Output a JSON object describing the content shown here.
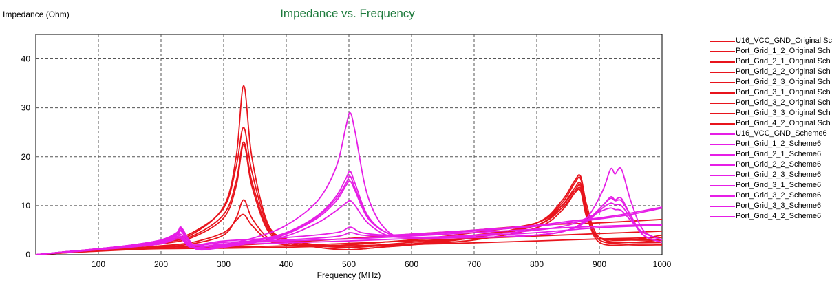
{
  "chart_data": {
    "type": "line",
    "title": "Impedance vs. Frequency",
    "ylabel": "Impedance (Ohm)",
    "xlabel": "Frequency (MHz)",
    "xlim": [
      0,
      1000
    ],
    "ylim": [
      0,
      45
    ],
    "xticks": [
      100,
      200,
      300,
      400,
      500,
      600,
      700,
      800,
      900,
      1000
    ],
    "yticks": [
      0,
      10,
      20,
      30,
      40
    ],
    "grid": true,
    "legend_position": "right",
    "colors": {
      "original": "#e8141c",
      "scheme6": "#e61ee6"
    },
    "series": [
      {
        "name": "U16_VCC_GND_Original Sc",
        "group": "original",
        "x": [
          0,
          50,
          100,
          150,
          200,
          250,
          300,
          320,
          332,
          345,
          370,
          400,
          450,
          500,
          550,
          600,
          700,
          800,
          840,
          860,
          870,
          880,
          900,
          950,
          1000
        ],
        "y": [
          0,
          0.5,
          1.0,
          1.5,
          2.2,
          3.5,
          7.5,
          14,
          22.5,
          14,
          5,
          2.5,
          1.5,
          1,
          1.5,
          2,
          3,
          5.5,
          9,
          12.5,
          13.5,
          8,
          2.5,
          2,
          2
        ]
      },
      {
        "name": "Port_Grid_1_2_Original Sch",
        "group": "original",
        "x": [
          0,
          50,
          100,
          150,
          200,
          250,
          300,
          320,
          332,
          345,
          370,
          400,
          450,
          500,
          550,
          600,
          700,
          800,
          840,
          860,
          870,
          880,
          900,
          950,
          1000
        ],
        "y": [
          0,
          0.6,
          1.2,
          1.8,
          2.7,
          4.5,
          9.5,
          18,
          26,
          17,
          6,
          3,
          1.5,
          1,
          1.5,
          2,
          3.5,
          6.5,
          10.5,
          14.5,
          15.5,
          9,
          3,
          2.5,
          3
        ]
      },
      {
        "name": "Port_Grid_2_1_Original Sch",
        "group": "original",
        "x": [
          0,
          50,
          100,
          150,
          200,
          250,
          300,
          320,
          332,
          345,
          370,
          400,
          450,
          500,
          550,
          600,
          700,
          800,
          840,
          860,
          870,
          880,
          900,
          950,
          1000
        ],
        "y": [
          0,
          0.6,
          1.1,
          1.7,
          2.5,
          3.8,
          8.2,
          15,
          23,
          15,
          5.5,
          2.8,
          1.8,
          1.5,
          2,
          2.5,
          3.5,
          6,
          10,
          13.5,
          14.5,
          8.5,
          3,
          2.5,
          2.5
        ]
      },
      {
        "name": "Port_Grid_2_2_Original Sch",
        "group": "original",
        "x": [
          0,
          50,
          100,
          150,
          200,
          250,
          300,
          320,
          332,
          345,
          370,
          400,
          450,
          500,
          550,
          600,
          700,
          800,
          840,
          860,
          870,
          880,
          900,
          950,
          1000
        ],
        "y": [
          0,
          0.6,
          1.1,
          1.7,
          2.6,
          4.2,
          9.8,
          20,
          34.5,
          20,
          6.5,
          3.2,
          2,
          1.5,
          1.8,
          2.2,
          3.5,
          6.5,
          11,
          15,
          16,
          10,
          3.5,
          2.5,
          2.5
        ]
      },
      {
        "name": "Port_Grid_2_3_Original Sch",
        "group": "original",
        "x": [
          0,
          50,
          100,
          150,
          200,
          250,
          300,
          320,
          332,
          345,
          370,
          400,
          450,
          500,
          550,
          600,
          700,
          800,
          840,
          860,
          870,
          880,
          900,
          950,
          1000
        ],
        "y": [
          0,
          0.5,
          0.9,
          1.2,
          1.6,
          2.2,
          4,
          7.5,
          11.2,
          7.5,
          3.5,
          2,
          1.8,
          2,
          2.5,
          3,
          4.5,
          6.5,
          10,
          13,
          14,
          8,
          3.5,
          3,
          3
        ]
      },
      {
        "name": "Port_Grid_3_1_Original Sch",
        "group": "original",
        "x": [
          0,
          50,
          100,
          150,
          200,
          250,
          300,
          320,
          332,
          345,
          370,
          400,
          450,
          500,
          550,
          600,
          700,
          800,
          840,
          860,
          870,
          880,
          900,
          950,
          1000
        ],
        "y": [
          0,
          0.5,
          0.9,
          1.3,
          1.8,
          2.5,
          4.5,
          7,
          8.2,
          6,
          3,
          2,
          1.8,
          2,
          2.5,
          3,
          4,
          6,
          9.5,
          12.5,
          13,
          7.5,
          3.5,
          3,
          4
        ]
      },
      {
        "name": "Port_Grid_3_2_Original Sch",
        "group": "original",
        "x": [
          0,
          50,
          100,
          150,
          200,
          300,
          400,
          500,
          600,
          700,
          800,
          900,
          1000
        ],
        "y": [
          0,
          0.4,
          0.8,
          1.1,
          1.3,
          1.5,
          1.8,
          2.3,
          2.8,
          3.3,
          3.8,
          4.3,
          4.8
        ]
      },
      {
        "name": "Port_Grid_3_3_Original Sch",
        "group": "original",
        "x": [
          0,
          50,
          100,
          150,
          200,
          300,
          400,
          500,
          600,
          700,
          800,
          900,
          1000
        ],
        "y": [
          0,
          0.4,
          0.7,
          1,
          1.2,
          1.3,
          1.5,
          1.8,
          2.1,
          2.4,
          2.8,
          3.2,
          3.5
        ]
      },
      {
        "name": "Port_Grid_4_2_Original Sch",
        "group": "original",
        "x": [
          0,
          50,
          100,
          150,
          200,
          300,
          400,
          500,
          600,
          700,
          800,
          900,
          1000
        ],
        "y": [
          0,
          0.5,
          0.9,
          1.2,
          1.5,
          1.8,
          2.5,
          3.3,
          4.2,
          5,
          6,
          6.5,
          7.2
        ]
      },
      {
        "name": "U16_VCC_GND_Scheme6",
        "group": "scheme6",
        "x": [
          0,
          50,
          100,
          150,
          200,
          225,
          232,
          245,
          260,
          300,
          350,
          400,
          450,
          480,
          495,
          502,
          510,
          530,
          560,
          600,
          700,
          800,
          850,
          880,
          905,
          918,
          925,
          935,
          950,
          970,
          1000
        ],
        "y": [
          0,
          0.6,
          1.2,
          1.9,
          3,
          4.5,
          5.6,
          3,
          1.2,
          2,
          3.5,
          6,
          11,
          18,
          26,
          29,
          25,
          12,
          5,
          3.5,
          3.5,
          4,
          5,
          7.5,
          13,
          17.5,
          16.5,
          17.5,
          11,
          5,
          3
        ]
      },
      {
        "name": "Port_Grid_1_2_Scheme6",
        "group": "scheme6",
        "x": [
          0,
          50,
          100,
          150,
          200,
          225,
          232,
          245,
          260,
          300,
          350,
          400,
          450,
          480,
          495,
          502,
          510,
          530,
          560,
          600,
          700,
          800,
          850,
          880,
          905,
          918,
          925,
          935,
          950,
          970,
          1000
        ],
        "y": [
          0,
          0.6,
          1.2,
          1.9,
          2.9,
          4.3,
          5.3,
          2.8,
          1,
          1.8,
          3,
          4.5,
          8,
          12,
          15.5,
          17,
          14.5,
          8,
          4.5,
          3.5,
          3.5,
          4,
          5,
          7,
          10,
          11.5,
          11,
          11,
          8,
          4,
          2.5
        ]
      },
      {
        "name": "Port_Grid_2_1_Scheme6",
        "group": "scheme6",
        "x": [
          0,
          50,
          100,
          150,
          200,
          225,
          232,
          245,
          260,
          300,
          350,
          400,
          450,
          480,
          495,
          502,
          510,
          530,
          560,
          600,
          700,
          800,
          850,
          880,
          905,
          918,
          925,
          935,
          950,
          970,
          1000
        ],
        "y": [
          0,
          0.6,
          1.1,
          1.8,
          2.8,
          4.1,
          5,
          2.6,
          1,
          1.6,
          2.8,
          4.2,
          7.5,
          11,
          14,
          15,
          13,
          7.5,
          4.5,
          3.5,
          3.5,
          4,
          5,
          6.8,
          9.5,
          10.5,
          10.2,
          10,
          7.5,
          4,
          2.5
        ]
      },
      {
        "name": "Port_Grid_2_2_Scheme6",
        "group": "scheme6",
        "x": [
          0,
          50,
          100,
          150,
          200,
          225,
          232,
          245,
          260,
          300,
          350,
          400,
          450,
          480,
          495,
          502,
          510,
          530,
          560,
          600,
          700,
          800,
          850,
          880,
          905,
          918,
          925,
          935,
          950,
          970,
          1000
        ],
        "y": [
          0,
          0.6,
          1.2,
          1.9,
          3,
          4.4,
          5.4,
          2.8,
          1.1,
          1.7,
          2.9,
          4.3,
          7.8,
          11.5,
          14.5,
          16,
          13.5,
          7.8,
          4.5,
          3.5,
          3.5,
          4,
          5,
          7,
          10,
          11.8,
          11.2,
          11.5,
          8,
          4,
          2.5
        ]
      },
      {
        "name": "Port_Grid_2_3_Scheme6",
        "group": "scheme6",
        "x": [
          0,
          50,
          100,
          150,
          200,
          225,
          232,
          245,
          260,
          300,
          350,
          400,
          450,
          480,
          495,
          502,
          510,
          530,
          560,
          600,
          700,
          800,
          850,
          880,
          905,
          918,
          925,
          935,
          950,
          970,
          1000
        ],
        "y": [
          0,
          0.6,
          1.1,
          1.8,
          2.8,
          4,
          4.8,
          2.5,
          1,
          1.5,
          2.5,
          3.8,
          6.5,
          9,
          10.5,
          11,
          10,
          6.5,
          4,
          3.5,
          4,
          5,
          6,
          7.5,
          9,
          9.5,
          9.2,
          9,
          7,
          4.5,
          3
        ]
      },
      {
        "name": "Port_Grid_3_1_Scheme6",
        "group": "scheme6",
        "x": [
          0,
          50,
          100,
          150,
          200,
          230,
          250,
          300,
          400,
          480,
          502,
          520,
          560,
          600,
          700,
          800,
          850,
          900,
          950,
          1000
        ],
        "y": [
          0,
          0.6,
          1.2,
          1.8,
          2.7,
          4.2,
          2,
          2.8,
          3.5,
          4.5,
          5.6,
          4.5,
          4,
          4.2,
          5,
          6,
          6.8,
          7.5,
          8.5,
          9.7
        ]
      },
      {
        "name": "Port_Grid_3_2_Scheme6",
        "group": "scheme6",
        "x": [
          0,
          50,
          100,
          150,
          200,
          230,
          250,
          300,
          400,
          480,
          502,
          520,
          560,
          600,
          700,
          800,
          850,
          900,
          950,
          1000
        ],
        "y": [
          0,
          0.6,
          1.1,
          1.7,
          2.5,
          3.8,
          1.8,
          2.5,
          3,
          3.7,
          4.5,
          4,
          3.8,
          4,
          4.8,
          5.8,
          6.5,
          7.3,
          8.2,
          9.5
        ]
      },
      {
        "name": "Port_Grid_3_3_Scheme6",
        "group": "scheme6",
        "x": [
          0,
          50,
          100,
          150,
          200,
          230,
          250,
          300,
          400,
          500,
          600,
          700,
          800,
          900,
          1000
        ],
        "y": [
          0,
          0.5,
          1,
          1.6,
          2.3,
          3.5,
          1.5,
          2.2,
          2.8,
          3.2,
          3.8,
          4.5,
          5.2,
          5.8,
          6.2
        ]
      },
      {
        "name": "Port_Grid_4_2_Scheme6",
        "group": "scheme6",
        "x": [
          0,
          50,
          100,
          150,
          200,
          230,
          250,
          300,
          400,
          500,
          600,
          700,
          800,
          900,
          1000
        ],
        "y": [
          0,
          0.5,
          1,
          1.5,
          2.2,
          3.2,
          1.4,
          2,
          2.4,
          2.8,
          3.3,
          3.8,
          4.5,
          5.5,
          6
        ]
      }
    ]
  }
}
